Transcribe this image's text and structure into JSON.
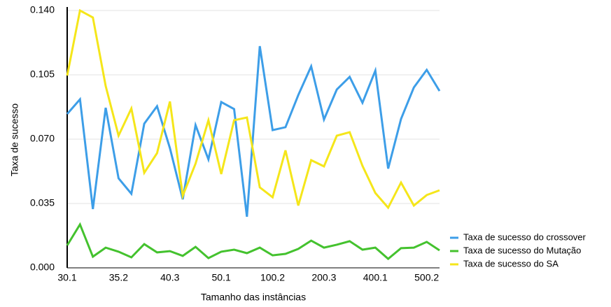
{
  "chart_data": {
    "type": "line",
    "xlabel": "Tamanho das instâncias",
    "ylabel": "Taxa de sucesso",
    "categories": [
      "30.1",
      null,
      null,
      null,
      "35.2",
      null,
      null,
      null,
      "40.3",
      null,
      null,
      null,
      "50.1",
      null,
      null,
      null,
      "100.2",
      null,
      null,
      null,
      "200.3",
      null,
      null,
      null,
      "400.1",
      null,
      null,
      null,
      "500.2",
      null
    ],
    "series": [
      {
        "name": "Taxa de sucesso do crossover",
        "color": "#3d9ee8",
        "values": [
          0.0837,
          0.0917,
          0.032,
          0.0871,
          0.0487,
          0.0403,
          0.0784,
          0.0879,
          0.0651,
          0.0373,
          0.0776,
          0.059,
          0.0902,
          0.0864,
          0.0278,
          0.1206,
          0.0749,
          0.0765,
          0.094,
          0.1096,
          0.0807,
          0.097,
          0.1039,
          0.0898,
          0.1073,
          0.054,
          0.081,
          0.0981,
          0.1077,
          0.0962
        ]
      },
      {
        "name": "Taxa de sucesso do Mutação",
        "color": "#44c22e",
        "values": [
          0.0122,
          0.0236,
          0.0061,
          0.011,
          0.0088,
          0.0057,
          0.0129,
          0.0084,
          0.0091,
          0.0065,
          0.0114,
          0.0053,
          0.0088,
          0.0099,
          0.008,
          0.011,
          0.0068,
          0.0076,
          0.0103,
          0.0148,
          0.011,
          0.0126,
          0.0145,
          0.0099,
          0.011,
          0.0049,
          0.0107,
          0.011,
          0.0141,
          0.0095
        ]
      },
      {
        "name": "Taxa de sucesso do SA",
        "color": "#f5e61a",
        "values": [
          0.1046,
          0.14,
          0.1362,
          0.0989,
          0.0719,
          0.0867,
          0.0517,
          0.0624,
          0.0905,
          0.0392,
          0.0567,
          0.0803,
          0.051,
          0.0803,
          0.0818,
          0.0438,
          0.0384,
          0.0639,
          0.0339,
          0.0586,
          0.0552,
          0.0719,
          0.0738,
          0.0555,
          0.0407,
          0.0327,
          0.0464,
          0.0339,
          0.0396,
          0.0422
        ]
      }
    ],
    "ylim": [
      0,
      0.14
    ],
    "yticks": [
      {
        "value": 0,
        "label": "0.000"
      },
      {
        "value": 0.035,
        "label": "0.035"
      },
      {
        "value": 0.07,
        "label": "0.070"
      },
      {
        "value": 0.105,
        "label": "0.105"
      },
      {
        "value": 0.14,
        "label": "0.140"
      }
    ],
    "grid": true,
    "legend": "lower right"
  }
}
